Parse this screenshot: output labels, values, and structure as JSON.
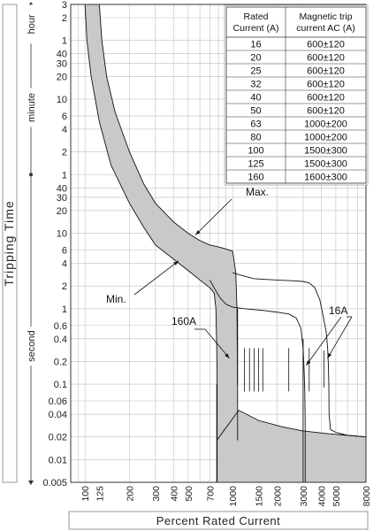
{
  "chart_data": {
    "type": "line",
    "title": "",
    "xlabel": "Percent Rated Current",
    "ylabel": "Tripping Time",
    "x_scale": "log",
    "y_scale": "log",
    "xlim": [
      80,
      8000
    ],
    "ylim": [
      0.005,
      10800
    ],
    "x_ticks": [
      "100",
      "125",
      "200",
      "300",
      "400",
      "500",
      "700",
      "1000",
      "1500",
      "2000",
      "3000",
      "4000",
      "5000",
      "8000"
    ],
    "y_ticks": [
      {
        "label": "3",
        "seconds": 10800
      },
      {
        "label": "2",
        "seconds": 7200
      },
      {
        "label": "1",
        "seconds": 3600
      },
      {
        "label": "40",
        "seconds": 2400
      },
      {
        "label": "30",
        "seconds": 1800
      },
      {
        "label": "20",
        "seconds": 1200
      },
      {
        "label": "10",
        "seconds": 600
      },
      {
        "label": "6",
        "seconds": 360
      },
      {
        "label": "4",
        "seconds": 240
      },
      {
        "label": "2",
        "seconds": 120
      },
      {
        "label": "1",
        "seconds": 60
      },
      {
        "label": "40",
        "seconds": 40
      },
      {
        "label": "30",
        "seconds": 30
      },
      {
        "label": "20",
        "seconds": 20
      },
      {
        "label": "10",
        "seconds": 10
      },
      {
        "label": "6",
        "seconds": 6
      },
      {
        "label": "4",
        "seconds": 4
      },
      {
        "label": "2",
        "seconds": 2
      },
      {
        "label": "1",
        "seconds": 1
      },
      {
        "label": "0.6",
        "seconds": 0.6
      },
      {
        "label": "0.4",
        "seconds": 0.4
      },
      {
        "label": "0.2",
        "seconds": 0.2
      },
      {
        "label": "0.1",
        "seconds": 0.1
      },
      {
        "label": "0.06",
        "seconds": 0.06
      },
      {
        "label": "0.04",
        "seconds": 0.04
      },
      {
        "label": "0.02",
        "seconds": 0.02
      },
      {
        "label": "0.01",
        "seconds": 0.01
      },
      {
        "label": "0.005",
        "seconds": 0.005
      }
    ],
    "unit_labels": {
      "hour": "hour",
      "minute": "minute",
      "second": "second"
    },
    "series": [
      {
        "name": "Max.",
        "x": [
          125,
          130,
          140,
          160,
          200,
          250,
          300,
          400,
          500,
          600,
          700,
          800,
          900,
          1000,
          1050,
          1070,
          1080
        ],
        "y": [
          10800,
          3600,
          1200,
          400,
          120,
          45,
          25,
          14,
          10,
          8,
          7,
          6.6,
          6.2,
          5.8,
          3,
          1,
          0.1
        ]
      },
      {
        "name": "Min.",
        "x": [
          100,
          103,
          110,
          125,
          150,
          200,
          250,
          300,
          400,
          500,
          600,
          700,
          750,
          770,
          780,
          785,
          785
        ],
        "y": [
          10800,
          3600,
          1200,
          300,
          80,
          25,
          12,
          7,
          4.5,
          3.2,
          2.4,
          1.9,
          1.6,
          1,
          0.3,
          0.1,
          0.005
        ]
      },
      {
        "name": "16A",
        "x": [
          1000,
          1200,
          1400,
          2000,
          2500,
          3000,
          3300,
          3600,
          3900,
          4100,
          4300,
          4400,
          4450,
          4480,
          4500,
          4600,
          5000,
          6000,
          8000
        ],
        "y": [
          3,
          2.7,
          2.5,
          2.4,
          2.35,
          2.3,
          2.2,
          1.9,
          1.3,
          0.8,
          0.5,
          0.3,
          0.18,
          0.1,
          0.04,
          0.025,
          0.023,
          0.021,
          0.02
        ]
      },
      {
        "name": "160A",
        "x": [
          700,
          760,
          820,
          900,
          1000,
          1200,
          1600,
          2000,
          2400,
          2700,
          2900,
          3000,
          3050,
          3080,
          3100,
          3100
        ],
        "y": [
          2.4,
          1.8,
          1.4,
          1.15,
          1.05,
          1.0,
          0.95,
          0.9,
          0.85,
          0.75,
          0.55,
          0.3,
          0.15,
          0.08,
          0.03,
          0.005
        ]
      }
    ],
    "magnetic_band": {
      "low_x": 780,
      "high_x": 1080,
      "floor_y": [
        0.018,
        0.02
      ]
    },
    "annotations": [
      {
        "text": "Max.",
        "points_to_x": 550,
        "points_to_y": 10
      },
      {
        "text": "Min.",
        "points_to_x": 430,
        "points_to_y": 4.3
      },
      {
        "text": "160A",
        "points_to_x": 1000,
        "points_to_y": 0.23
      },
      {
        "text": "16A",
        "points_to_x": 4150,
        "points_to_y": 0.23
      }
    ],
    "table": {
      "headers": [
        "Rated Current (A)",
        "Magnetic trip current AC (A)"
      ],
      "rows": [
        [
          "16",
          "600±120"
        ],
        [
          "20",
          "600±120"
        ],
        [
          "25",
          "600±120"
        ],
        [
          "32",
          "600±120"
        ],
        [
          "40",
          "600±120"
        ],
        [
          "50",
          "600±120"
        ],
        [
          "63",
          "1000±200"
        ],
        [
          "80",
          "1000±200"
        ],
        [
          "100",
          "1500±300"
        ],
        [
          "125",
          "1500±300"
        ],
        [
          "160",
          "1600±300"
        ]
      ]
    },
    "grid": true
  },
  "colors": {
    "band_fill": "#c9c9c9",
    "grid": "#bfbfbf",
    "line": "#111111"
  }
}
